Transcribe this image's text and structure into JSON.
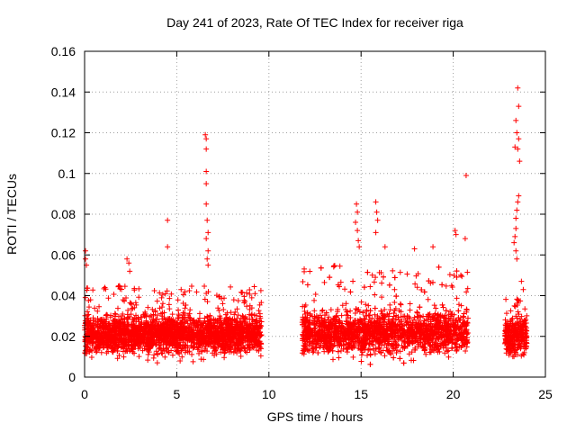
{
  "chart_data": {
    "type": "scatter",
    "title": "Day 241 of 2023, Rate Of TEC Index for receiver riga",
    "xlabel": "GPS time / hours",
    "ylabel": "ROTI / TECUs",
    "xlim": [
      0,
      25
    ],
    "ylim": [
      0,
      0.16
    ],
    "x_ticks": [
      0,
      5,
      10,
      15,
      20,
      25
    ],
    "x_tick_labels": [
      "0",
      "5",
      "10",
      "15",
      "20",
      "25"
    ],
    "y_ticks": [
      0,
      0.02,
      0.04,
      0.06,
      0.08,
      0.1,
      0.12,
      0.14,
      0.16
    ],
    "y_tick_labels": [
      "0",
      "0.02",
      "0.04",
      "0.06",
      "0.08",
      "0.1",
      "0.12",
      "0.14",
      "0.16"
    ],
    "grid": true,
    "marker": "+",
    "color": "#ff0000",
    "segments": [
      {
        "x_start": 0.0,
        "x_end": 9.6,
        "baseline": 0.021,
        "spread": 0.008,
        "min": 0.005,
        "top_typical": 0.045
      },
      {
        "x_start": 11.8,
        "x_end": 20.8,
        "baseline": 0.022,
        "spread": 0.009,
        "min": 0.006,
        "top_typical": 0.055
      },
      {
        "x_start": 22.8,
        "x_end": 24.0,
        "baseline": 0.02,
        "spread": 0.008,
        "min": 0.009,
        "top_typical": 0.04
      }
    ],
    "peaks": [
      {
        "x": 0.05,
        "y": 0.062
      },
      {
        "x": 0.05,
        "y": 0.058
      },
      {
        "x": 0.1,
        "y": 0.055
      },
      {
        "x": 2.3,
        "y": 0.058
      },
      {
        "x": 2.4,
        "y": 0.056
      },
      {
        "x": 2.45,
        "y": 0.052
      },
      {
        "x": 4.5,
        "y": 0.077
      },
      {
        "x": 4.5,
        "y": 0.064
      },
      {
        "x": 6.55,
        "y": 0.119
      },
      {
        "x": 6.6,
        "y": 0.117
      },
      {
        "x": 6.6,
        "y": 0.112
      },
      {
        "x": 6.6,
        "y": 0.101
      },
      {
        "x": 6.6,
        "y": 0.095
      },
      {
        "x": 6.6,
        "y": 0.085
      },
      {
        "x": 6.65,
        "y": 0.077
      },
      {
        "x": 6.7,
        "y": 0.071
      },
      {
        "x": 6.6,
        "y": 0.068
      },
      {
        "x": 6.7,
        "y": 0.062
      },
      {
        "x": 6.65,
        "y": 0.058
      },
      {
        "x": 6.7,
        "y": 0.055
      },
      {
        "x": 14.75,
        "y": 0.085
      },
      {
        "x": 14.8,
        "y": 0.081
      },
      {
        "x": 14.7,
        "y": 0.076
      },
      {
        "x": 14.8,
        "y": 0.072
      },
      {
        "x": 14.85,
        "y": 0.067
      },
      {
        "x": 14.9,
        "y": 0.064
      },
      {
        "x": 15.8,
        "y": 0.086
      },
      {
        "x": 15.85,
        "y": 0.081
      },
      {
        "x": 15.9,
        "y": 0.077
      },
      {
        "x": 15.8,
        "y": 0.071
      },
      {
        "x": 16.3,
        "y": 0.064
      },
      {
        "x": 17.9,
        "y": 0.063
      },
      {
        "x": 18.9,
        "y": 0.064
      },
      {
        "x": 20.1,
        "y": 0.072
      },
      {
        "x": 20.15,
        "y": 0.07
      },
      {
        "x": 20.7,
        "y": 0.099
      },
      {
        "x": 20.65,
        "y": 0.068
      },
      {
        "x": 23.5,
        "y": 0.142
      },
      {
        "x": 23.55,
        "y": 0.133
      },
      {
        "x": 23.4,
        "y": 0.126
      },
      {
        "x": 23.45,
        "y": 0.12
      },
      {
        "x": 23.55,
        "y": 0.117
      },
      {
        "x": 23.35,
        "y": 0.113
      },
      {
        "x": 23.5,
        "y": 0.112
      },
      {
        "x": 23.6,
        "y": 0.106
      },
      {
        "x": 23.55,
        "y": 0.089
      },
      {
        "x": 23.5,
        "y": 0.086
      },
      {
        "x": 23.45,
        "y": 0.082
      },
      {
        "x": 23.4,
        "y": 0.078
      },
      {
        "x": 23.4,
        "y": 0.073
      },
      {
        "x": 23.35,
        "y": 0.069
      },
      {
        "x": 23.3,
        "y": 0.066
      },
      {
        "x": 23.4,
        "y": 0.062
      },
      {
        "x": 23.45,
        "y": 0.058
      },
      {
        "x": 23.7,
        "y": 0.047
      },
      {
        "x": 23.8,
        "y": 0.043
      }
    ]
  }
}
